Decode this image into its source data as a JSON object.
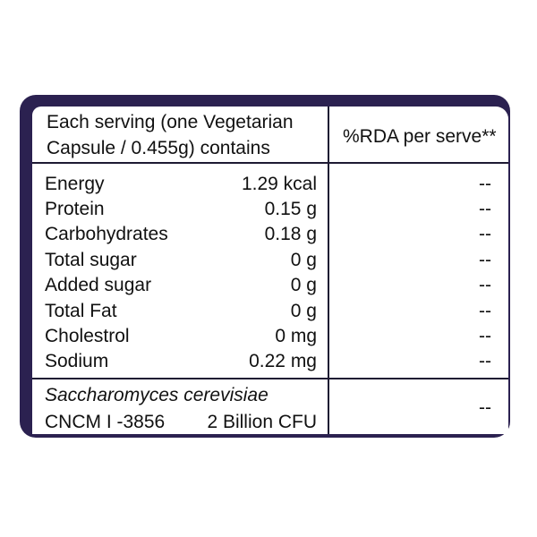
{
  "header": {
    "serving_line1": "Each serving (one Vegetarian",
    "serving_line2": "Capsule / 0.455g) contains",
    "rda": "%RDA per serve**"
  },
  "nutrients": [
    {
      "name": "Energy",
      "value": "1.29 kcal",
      "rda": "--"
    },
    {
      "name": "Protein",
      "value": "0.15 g",
      "rda": "--"
    },
    {
      "name": "Carbohydrates",
      "value": "0.18 g",
      "rda": "--"
    },
    {
      "name": "Total sugar",
      "value": "0 g",
      "rda": "--"
    },
    {
      "name": "Added sugar",
      "value": "0 g",
      "rda": "--"
    },
    {
      "name": "Total Fat",
      "value": "0 g",
      "rda": "--"
    },
    {
      "name": "Cholestrol",
      "value": "0 mg",
      "rda": "--"
    },
    {
      "name": "Sodium",
      "value": "0.22 mg",
      "rda": "--"
    }
  ],
  "strain": {
    "name": "Saccharomyces cerevisiae",
    "id": "CNCM I -3856",
    "cfu": "2 Billion CFU",
    "rda": "--"
  },
  "colors": {
    "frame": "#2b2150",
    "text": "#111111",
    "background": "#ffffff"
  }
}
